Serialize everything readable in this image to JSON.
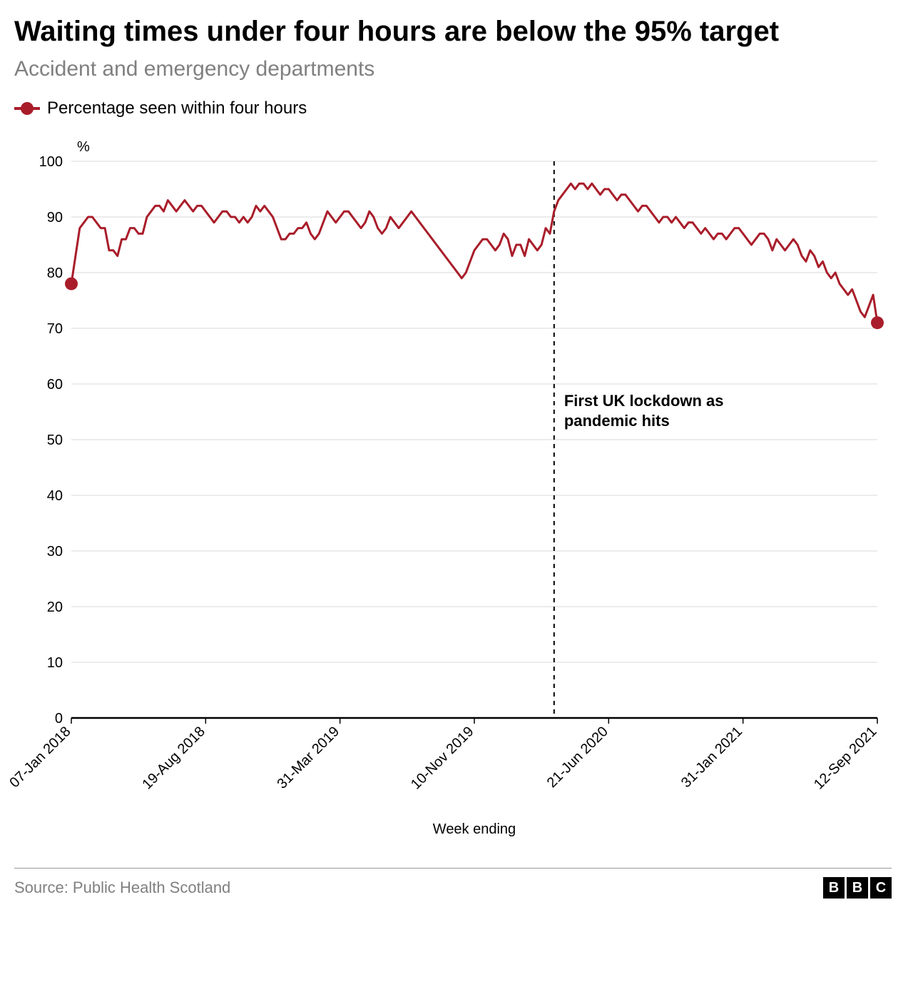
{
  "title": "Waiting times under four hours are below the 95% target",
  "subtitle": "Accident and emergency departments",
  "legend_label": "Percentage seen within four hours",
  "source": "Source: Public Health Scotland",
  "bbc": [
    "B",
    "B",
    "C"
  ],
  "chart": {
    "type": "line",
    "y_unit_label": "%",
    "x_axis_label": "Week ending",
    "ylim": [
      0,
      100
    ],
    "yticks": [
      0,
      10,
      20,
      30,
      40,
      50,
      60,
      70,
      80,
      90,
      100
    ],
    "x_tick_labels": [
      "07-Jan 2018",
      "19-Aug 2018",
      "31-Mar 2019",
      "10-Nov 2019",
      "21-Jun 2020",
      "31-Jan 2021",
      "12-Sep 2021"
    ],
    "x_tick_indices": [
      0,
      32,
      64,
      96,
      128,
      160,
      192
    ],
    "n_points": 193,
    "line_color": "#a91d2a",
    "line_width": 3,
    "marker_color": "#a91d2a",
    "marker_radius": 9,
    "grid_color": "#d9d9d9",
    "axis_color": "#000000",
    "background_color": "#ffffff",
    "tick_font_size": 20,
    "axis_label_font_size": 20,
    "annotation": {
      "text": "First UK lockdown as pandemic hits",
      "x_index": 115,
      "label_y_value": 56,
      "font_size": 22,
      "font_weight": "bold",
      "line_dash": "6,6",
      "line_color": "#000000"
    },
    "start_marker_index": 0,
    "end_marker_index": 192,
    "values": [
      78,
      83,
      88,
      89,
      90,
      90,
      89,
      88,
      88,
      84,
      84,
      83,
      86,
      86,
      88,
      88,
      87,
      87,
      90,
      91,
      92,
      92,
      91,
      93,
      92,
      91,
      92,
      93,
      92,
      91,
      92,
      92,
      91,
      90,
      89,
      90,
      91,
      91,
      90,
      90,
      89,
      90,
      89,
      90,
      92,
      91,
      92,
      91,
      90,
      88,
      86,
      86,
      87,
      87,
      88,
      88,
      89,
      87,
      86,
      87,
      89,
      91,
      90,
      89,
      90,
      91,
      91,
      90,
      89,
      88,
      89,
      91,
      90,
      88,
      87,
      88,
      90,
      89,
      88,
      89,
      90,
      91,
      90,
      89,
      88,
      87,
      86,
      85,
      84,
      83,
      82,
      81,
      80,
      79,
      80,
      82,
      84,
      85,
      86,
      86,
      85,
      84,
      85,
      87,
      86,
      83,
      85,
      85,
      83,
      86,
      85,
      84,
      85,
      88,
      87,
      91,
      93,
      94,
      95,
      96,
      95,
      96,
      96,
      95,
      96,
      95,
      94,
      95,
      95,
      94,
      93,
      94,
      94,
      93,
      92,
      91,
      92,
      92,
      91,
      90,
      89,
      90,
      90,
      89,
      90,
      89,
      88,
      89,
      89,
      88,
      87,
      88,
      87,
      86,
      87,
      87,
      86,
      87,
      88,
      88,
      87,
      86,
      85,
      86,
      87,
      87,
      86,
      84,
      86,
      85,
      84,
      85,
      86,
      85,
      83,
      82,
      84,
      83,
      81,
      82,
      80,
      79,
      80,
      78,
      77,
      76,
      77,
      75,
      73,
      72,
      74,
      76,
      71
    ]
  }
}
